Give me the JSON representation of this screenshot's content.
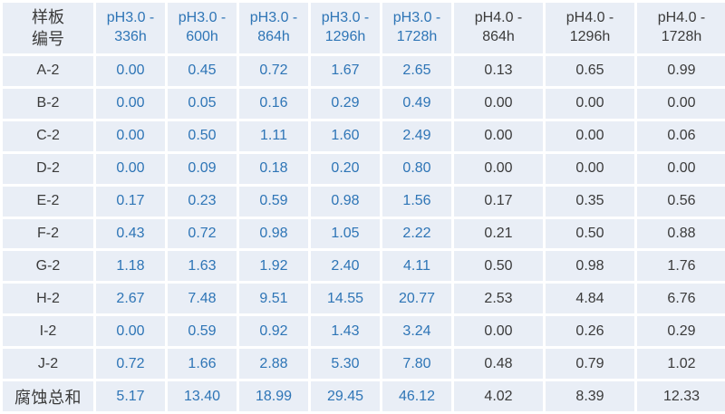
{
  "table": {
    "corner_header": {
      "line1": "样板",
      "line2": "编号"
    },
    "column_headers": [
      {
        "line1": "pH3.0 -",
        "line2": "336h",
        "group": "ph3"
      },
      {
        "line1": "pH3.0 -",
        "line2": "600h",
        "group": "ph3"
      },
      {
        "line1": "pH3.0 -",
        "line2": "864h",
        "group": "ph3"
      },
      {
        "line1": "pH3.0 -",
        "line2": "1296h",
        "group": "ph3"
      },
      {
        "line1": "pH3.0 -",
        "line2": "1728h",
        "group": "ph3"
      },
      {
        "line1": "pH4.0 -",
        "line2": "864h",
        "group": "ph4"
      },
      {
        "line1": "pH4.0 -",
        "line2": "1296h",
        "group": "ph4"
      },
      {
        "line1": "pH4.0 -",
        "line2": "1728h",
        "group": "ph4"
      }
    ],
    "rows": [
      {
        "label": "A-2",
        "values": [
          "0.00",
          "0.45",
          "0.72",
          "1.67",
          "2.65",
          "0.13",
          "0.65",
          "0.99"
        ]
      },
      {
        "label": "B-2",
        "values": [
          "0.00",
          "0.05",
          "0.16",
          "0.29",
          "0.49",
          "0.00",
          "0.00",
          "0.00"
        ]
      },
      {
        "label": "C-2",
        "values": [
          "0.00",
          "0.50",
          "1.11",
          "1.60",
          "2.49",
          "0.00",
          "0.00",
          "0.06"
        ]
      },
      {
        "label": "D-2",
        "values": [
          "0.00",
          "0.09",
          "0.18",
          "0.20",
          "0.80",
          "0.00",
          "0.00",
          "0.00"
        ]
      },
      {
        "label": "E-2",
        "values": [
          "0.17",
          "0.23",
          "0.59",
          "0.98",
          "1.56",
          "0.17",
          "0.35",
          "0.56"
        ]
      },
      {
        "label": "F-2",
        "values": [
          "0.43",
          "0.72",
          "0.98",
          "1.05",
          "2.22",
          "0.21",
          "0.50",
          "0.88"
        ]
      },
      {
        "label": "G-2",
        "values": [
          "1.18",
          "1.63",
          "1.92",
          "2.40",
          "4.11",
          "0.50",
          "0.98",
          "1.76"
        ]
      },
      {
        "label": "H-2",
        "values": [
          "2.67",
          "7.48",
          "9.51",
          "14.55",
          "20.77",
          "2.53",
          "4.84",
          "6.76"
        ]
      },
      {
        "label": "I-2",
        "values": [
          "0.00",
          "0.59",
          "0.92",
          "1.43",
          "3.24",
          "0.00",
          "0.26",
          "0.29"
        ]
      },
      {
        "label": "J-2",
        "values": [
          "0.72",
          "1.66",
          "2.88",
          "5.30",
          "7.80",
          "0.48",
          "0.79",
          "1.02"
        ]
      }
    ],
    "total_row": {
      "label": "腐蚀总和",
      "values": [
        "5.17",
        "13.40",
        "18.99",
        "29.45",
        "46.12",
        "4.02",
        "8.39",
        "12.33"
      ]
    }
  },
  "layout": {
    "label_col_width": 100,
    "ph3_col_width": 76,
    "ph4_col_width": 98
  },
  "colors": {
    "cell_background": "#E9EEF6",
    "grid_gap": "#FFFFFF",
    "ph3_text": "#2E75B6",
    "ph4_text": "#3B3B3B",
    "label_text": "#3B3B3B"
  }
}
